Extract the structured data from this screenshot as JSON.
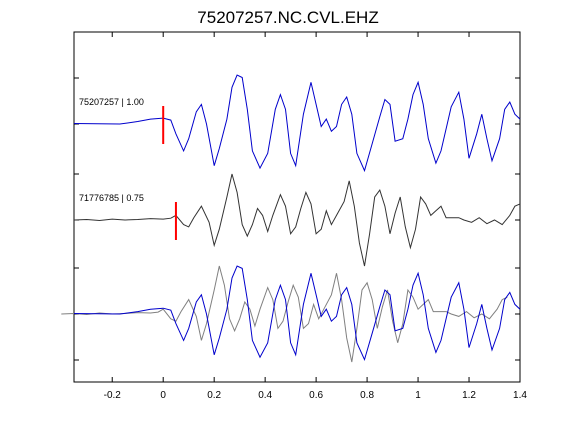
{
  "chart_data": {
    "type": "line",
    "title": "75207257.NC.CVL.EHZ",
    "xlim": [
      -0.35,
      1.4
    ],
    "x_ticks": [
      -0.2,
      0,
      0.2,
      0.4,
      0.6,
      0.8,
      1,
      1.2,
      1.4
    ],
    "x_tick_labels": [
      "-0.2",
      "0",
      "0.2",
      "0.4",
      "0.6",
      "0.8",
      "1",
      "1.2",
      "1.4"
    ],
    "grid": false,
    "traces": [
      {
        "label": "75207257 | 1.00",
        "color": "#0000cc",
        "pick_time": 0.0,
        "points": [
          [
            -0.35,
            0.01
          ],
          [
            -0.17,
            0.0
          ],
          [
            -0.14,
            0.02
          ],
          [
            -0.1,
            0.05
          ],
          [
            -0.05,
            0.1
          ],
          [
            0.0,
            0.12
          ],
          [
            0.03,
            0.08
          ],
          [
            0.05,
            -0.2
          ],
          [
            0.08,
            -0.55
          ],
          [
            0.1,
            -0.3
          ],
          [
            0.13,
            0.25
          ],
          [
            0.15,
            0.4
          ],
          [
            0.17,
            0.0
          ],
          [
            0.2,
            -0.85
          ],
          [
            0.22,
            -0.5
          ],
          [
            0.25,
            0.1
          ],
          [
            0.27,
            0.75
          ],
          [
            0.29,
            1.0
          ],
          [
            0.31,
            0.95
          ],
          [
            0.33,
            0.3
          ],
          [
            0.35,
            -0.55
          ],
          [
            0.38,
            -0.9
          ],
          [
            0.41,
            -0.6
          ],
          [
            0.44,
            0.3
          ],
          [
            0.46,
            0.6
          ],
          [
            0.48,
            0.3
          ],
          [
            0.5,
            -0.6
          ],
          [
            0.52,
            -0.85
          ],
          [
            0.55,
            0.2
          ],
          [
            0.58,
            0.85
          ],
          [
            0.6,
            0.4
          ],
          [
            0.62,
            -0.05
          ],
          [
            0.64,
            0.1
          ],
          [
            0.66,
            -0.15
          ],
          [
            0.68,
            -0.05
          ],
          [
            0.7,
            0.4
          ],
          [
            0.72,
            0.55
          ],
          [
            0.74,
            0.2
          ],
          [
            0.76,
            -0.6
          ],
          [
            0.79,
            -0.95
          ],
          [
            0.82,
            -0.4
          ],
          [
            0.85,
            0.15
          ],
          [
            0.87,
            0.5
          ],
          [
            0.89,
            0.4
          ],
          [
            0.91,
            -0.35
          ],
          [
            0.94,
            -0.3
          ],
          [
            0.96,
            0.1
          ],
          [
            0.98,
            0.6
          ],
          [
            1.0,
            0.85
          ],
          [
            1.02,
            0.4
          ],
          [
            1.04,
            -0.3
          ],
          [
            1.07,
            -0.8
          ],
          [
            1.09,
            -0.55
          ],
          [
            1.11,
            -0.1
          ],
          [
            1.13,
            0.35
          ],
          [
            1.16,
            0.65
          ],
          [
            1.18,
            0.1
          ],
          [
            1.2,
            -0.7
          ],
          [
            1.23,
            -0.2
          ],
          [
            1.25,
            0.2
          ],
          [
            1.27,
            -0.3
          ],
          [
            1.29,
            -0.75
          ],
          [
            1.32,
            -0.3
          ],
          [
            1.34,
            0.3
          ],
          [
            1.36,
            0.45
          ],
          [
            1.38,
            0.2
          ],
          [
            1.4,
            0.1
          ]
        ]
      },
      {
        "label": "71776785 | 0.75",
        "color": "#333333",
        "pick_time": 0.05,
        "points": [
          [
            -0.35,
            0.0
          ],
          [
            -0.3,
            0.01
          ],
          [
            -0.25,
            -0.01
          ],
          [
            -0.2,
            0.02
          ],
          [
            -0.15,
            0.0
          ],
          [
            -0.1,
            0.01
          ],
          [
            -0.05,
            0.03
          ],
          [
            0.0,
            0.02
          ],
          [
            0.03,
            0.04
          ],
          [
            0.05,
            0.1
          ],
          [
            0.08,
            -0.1
          ],
          [
            0.1,
            -0.15
          ],
          [
            0.12,
            0.05
          ],
          [
            0.15,
            0.3
          ],
          [
            0.18,
            -0.05
          ],
          [
            0.2,
            -0.55
          ],
          [
            0.22,
            -0.2
          ],
          [
            0.25,
            0.5
          ],
          [
            0.27,
            1.0
          ],
          [
            0.29,
            0.6
          ],
          [
            0.31,
            -0.1
          ],
          [
            0.33,
            -0.35
          ],
          [
            0.35,
            -0.1
          ],
          [
            0.37,
            0.25
          ],
          [
            0.39,
            0.1
          ],
          [
            0.41,
            -0.25
          ],
          [
            0.43,
            0.1
          ],
          [
            0.46,
            0.55
          ],
          [
            0.48,
            0.3
          ],
          [
            0.5,
            -0.3
          ],
          [
            0.52,
            -0.15
          ],
          [
            0.54,
            0.25
          ],
          [
            0.56,
            0.6
          ],
          [
            0.58,
            0.35
          ],
          [
            0.6,
            -0.3
          ],
          [
            0.62,
            -0.2
          ],
          [
            0.64,
            0.2
          ],
          [
            0.66,
            -0.1
          ],
          [
            0.68,
            0.1
          ],
          [
            0.71,
            0.4
          ],
          [
            0.73,
            0.85
          ],
          [
            0.75,
            0.3
          ],
          [
            0.77,
            -0.5
          ],
          [
            0.79,
            -1.0
          ],
          [
            0.81,
            -0.3
          ],
          [
            0.83,
            0.5
          ],
          [
            0.85,
            0.65
          ],
          [
            0.87,
            0.3
          ],
          [
            0.89,
            -0.3
          ],
          [
            0.91,
            0.15
          ],
          [
            0.93,
            0.5
          ],
          [
            0.95,
            -0.15
          ],
          [
            0.97,
            -0.6
          ],
          [
            0.99,
            -0.2
          ],
          [
            1.01,
            0.5
          ],
          [
            1.03,
            0.35
          ],
          [
            1.05,
            0.1
          ],
          [
            1.07,
            0.2
          ],
          [
            1.09,
            0.3
          ],
          [
            1.11,
            0.05
          ],
          [
            1.13,
            0.05
          ],
          [
            1.16,
            0.05
          ],
          [
            1.18,
            0.0
          ],
          [
            1.21,
            -0.05
          ],
          [
            1.24,
            0.05
          ],
          [
            1.27,
            -0.08
          ],
          [
            1.3,
            0.0
          ],
          [
            1.33,
            -0.1
          ],
          [
            1.36,
            0.1
          ],
          [
            1.38,
            0.3
          ],
          [
            1.4,
            0.35
          ]
        ]
      }
    ],
    "overlay": {
      "series": [
        {
          "color": "#0000cc",
          "source_trace": 0,
          "shift": 0.0
        },
        {
          "color": "#808080",
          "source_trace": 1,
          "shift": -0.05
        }
      ]
    }
  }
}
